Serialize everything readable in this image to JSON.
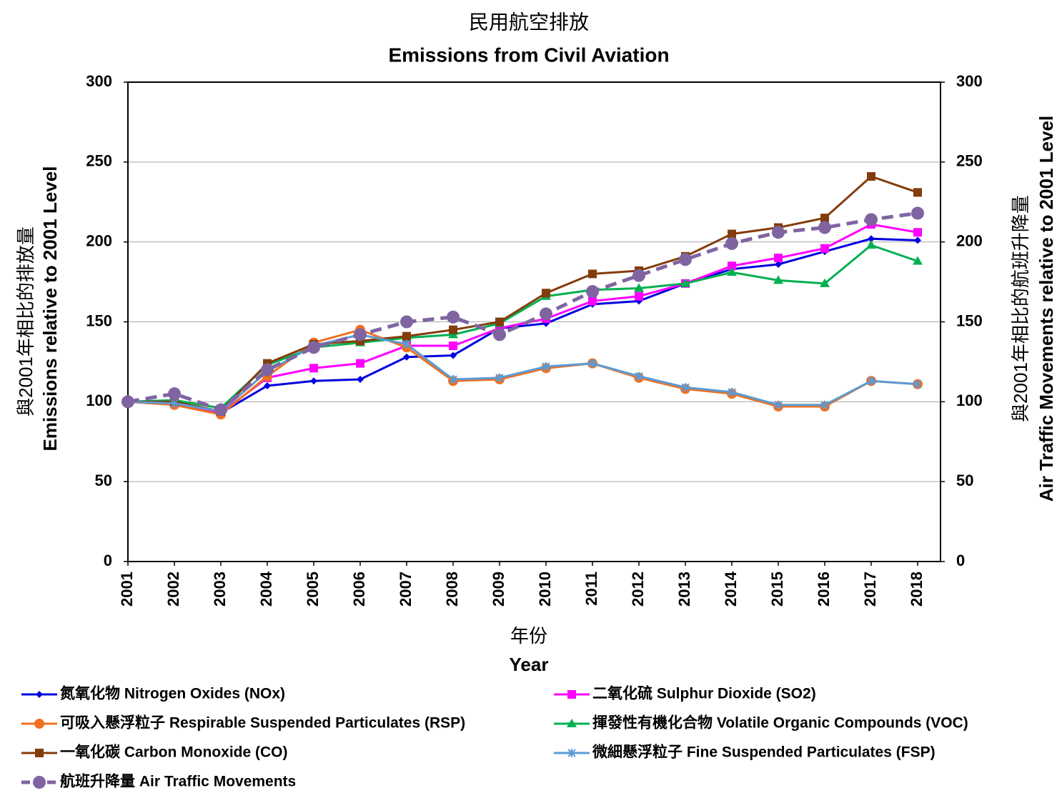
{
  "chart_data": {
    "type": "line",
    "title": "民用航空排放",
    "subtitle": "Emissions from Civil Aviation",
    "x_label": [
      "年份",
      "Year"
    ],
    "y_label": [
      "與2001年相比的排放量",
      "Emissions  relative to 2001 Level"
    ],
    "y2_label": [
      "與2001年相比的航班升降量",
      "Air Traffic Movements  relative to 2001 Level"
    ],
    "categories": [
      "2001",
      "2002",
      "2003",
      "2004",
      "2005",
      "2006",
      "2007",
      "2008",
      "2009",
      "2010",
      "2011",
      "2012",
      "2013",
      "2014",
      "2015",
      "2016",
      "2017",
      "2018"
    ],
    "ylim": [
      0,
      300
    ],
    "yticks": [
      0,
      50,
      100,
      150,
      200,
      250,
      300
    ],
    "y2lim": [
      0,
      300
    ],
    "y2ticks": [
      0,
      50,
      100,
      150,
      200,
      250,
      300
    ],
    "grid": true,
    "series": [
      {
        "name": "氮氧化物 Nitrogen Oxides (NOx)",
        "color": "#0000e0",
        "marker": "diamond",
        "values": [
          100,
          99,
          93,
          110,
          113,
          114,
          128,
          129,
          146,
          149,
          161,
          163,
          174,
          183,
          186,
          194,
          202,
          201
        ]
      },
      {
        "name": "二氧化硫 Sulphur Dioxide (SO2)",
        "color": "#ff00ff",
        "marker": "square",
        "values": [
          100,
          99,
          93,
          115,
          121,
          124,
          135,
          135,
          146,
          152,
          163,
          166,
          174,
          185,
          190,
          196,
          211,
          206
        ]
      },
      {
        "name": "可吸入懸浮粒子 Respirable Suspended Particulates (RSP)",
        "color": "#f07020",
        "marker": "circle",
        "values": [
          100,
          98,
          92,
          116,
          137,
          145,
          134,
          113,
          114,
          121,
          124,
          115,
          108,
          105,
          97,
          97,
          113,
          111
        ]
      },
      {
        "name": "揮發性有機化合物 Volatile Organic Compounds (VOC)",
        "color": "#00b050",
        "marker": "triangle",
        "values": [
          100,
          101,
          96,
          123,
          134,
          137,
          140,
          142,
          149,
          166,
          170,
          171,
          174,
          181,
          176,
          174,
          198,
          188
        ]
      },
      {
        "name": "一氧化碳 Carbon Monoxide (CO)",
        "color": "#843c0c",
        "marker": "square",
        "values": [
          100,
          100,
          94,
          124,
          136,
          138,
          141,
          145,
          150,
          168,
          180,
          182,
          191,
          205,
          209,
          215,
          241,
          231
        ]
      },
      {
        "name": "微細懸浮粒子 Fine Suspended Particulates (FSP)",
        "color": "#5b9bd5",
        "marker": "star",
        "values": [
          100,
          99,
          94,
          119,
          135,
          142,
          136,
          114,
          115,
          122,
          124,
          116,
          109,
          106,
          98,
          98,
          113,
          111
        ]
      },
      {
        "name": "航班升降量 Air Traffic Movements",
        "color": "#8064a2",
        "marker": "bigcircle",
        "dashed": true,
        "axis": "y2",
        "values": [
          100,
          105,
          95,
          120,
          134,
          142,
          150,
          153,
          142,
          155,
          169,
          179,
          189,
          199,
          206,
          209,
          214,
          218
        ]
      }
    ]
  }
}
